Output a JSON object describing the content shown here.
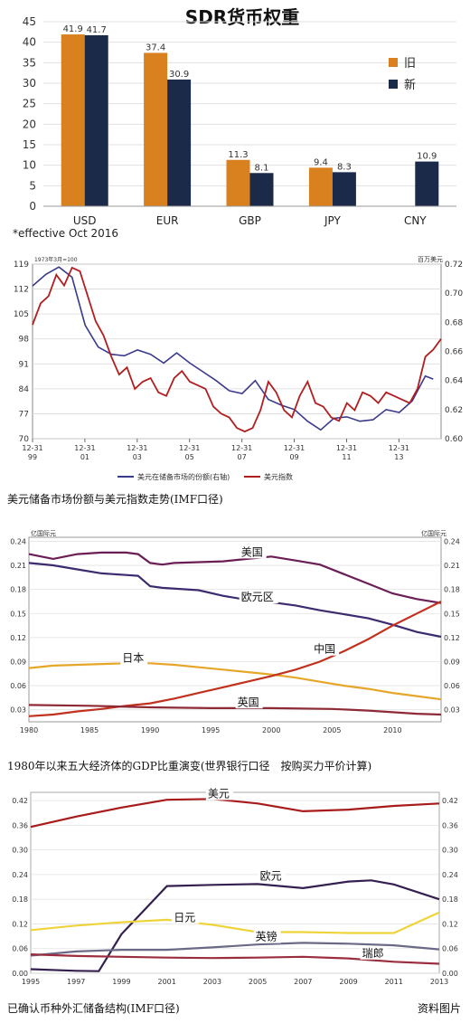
{
  "chart_data": [
    {
      "type": "bar",
      "title": "SDR货币权重",
      "categories": [
        "USD",
        "EUR",
        "GBP",
        "JPY",
        "CNY"
      ],
      "series": [
        {
          "name": "旧",
          "color": "#d9801f",
          "values": [
            41.9,
            37.4,
            11.3,
            9.4,
            null
          ]
        },
        {
          "name": "新",
          "color": "#1c2a4a",
          "values": [
            41.7,
            30.9,
            8.1,
            8.3,
            10.9
          ]
        }
      ],
      "value_labels": {
        "旧": [
          "41.9",
          "37.4",
          "11.3",
          "9.4",
          ""
        ],
        "新": [
          "41.7",
          "30.9",
          "8.1",
          "8.3",
          "10.9"
        ]
      },
      "yticks": [
        0,
        5,
        10,
        15,
        20,
        25,
        30,
        35,
        40,
        45
      ],
      "ylim": [
        0,
        45
      ],
      "note": "*effective Oct 2016",
      "legend": "right"
    },
    {
      "type": "line",
      "caption": "美元储备市场份额与美元指数走势(IMF口径)",
      "left_axis_label": "1973年3月=100",
      "right_axis_label": "百万美元",
      "left_ticks": [
        "119",
        "112",
        "105",
        "98",
        "91",
        "84",
        "77",
        "70"
      ],
      "left_tick_values": [
        119,
        112,
        105,
        98,
        91,
        84,
        77,
        70
      ],
      "right_ticks": [
        "0.72",
        "0.70",
        "0.68",
        "0.66",
        "0.64",
        "0.62",
        "0.60"
      ],
      "right_tick_values": [
        0.72,
        0.7,
        0.68,
        0.66,
        0.64,
        0.62,
        0.6
      ],
      "x_ticks": [
        {
          "top": "12-31",
          "bottom": "99",
          "x": 1999.99
        },
        {
          "top": "12-31",
          "bottom": "01",
          "x": 2001.99
        },
        {
          "top": "12-31",
          "bottom": "03",
          "x": 2003.99
        },
        {
          "top": "12-31",
          "bottom": "05",
          "x": 2005.99
        },
        {
          "top": "12-31",
          "bottom": "07",
          "x": 2007.99
        },
        {
          "top": "12-31",
          "bottom": "09",
          "x": 2009.99
        },
        {
          "top": "12-31",
          "bottom": "11",
          "x": 2011.99
        },
        {
          "top": "12-31",
          "bottom": "13",
          "x": 2013.99
        }
      ],
      "xlim": [
        1999.99,
        2015.6
      ],
      "series": [
        {
          "name": "美元在储备市场的份额(右轴)",
          "color": "#3a3a8c",
          "axis": "right",
          "x": [
            1999.99,
            2000.5,
            2001.0,
            2001.5,
            2002.0,
            2002.5,
            2003.0,
            2003.5,
            2004.0,
            2004.5,
            2005.0,
            2005.5,
            2006.0,
            2006.5,
            2007.0,
            2007.5,
            2008.0,
            2008.5,
            2009.0,
            2009.5,
            2010.0,
            2010.5,
            2011.0,
            2011.5,
            2012.0,
            2012.5,
            2013.0,
            2013.5,
            2014.0,
            2014.5,
            2015.0,
            2015.3
          ],
          "y": [
            0.705,
            0.713,
            0.718,
            0.711,
            0.678,
            0.663,
            0.658,
            0.657,
            0.661,
            0.658,
            0.652,
            0.659,
            0.652,
            0.646,
            0.64,
            0.633,
            0.631,
            0.64,
            0.627,
            0.623,
            0.62,
            0.612,
            0.606,
            0.614,
            0.615,
            0.612,
            0.613,
            0.62,
            0.618,
            0.626,
            0.643,
            0.641
          ]
        },
        {
          "name": "美元指数",
          "color": "#b01e20",
          "axis": "left",
          "x": [
            1999.99,
            2000.3,
            2000.6,
            2000.9,
            2001.2,
            2001.5,
            2001.8,
            2002.1,
            2002.4,
            2002.7,
            2003.0,
            2003.3,
            2003.6,
            2003.9,
            2004.2,
            2004.5,
            2004.8,
            2005.1,
            2005.4,
            2005.7,
            2006.0,
            2006.3,
            2006.6,
            2006.9,
            2007.2,
            2007.5,
            2007.8,
            2008.1,
            2008.4,
            2008.7,
            2009.0,
            2009.3,
            2009.6,
            2009.9,
            2010.2,
            2010.5,
            2010.8,
            2011.1,
            2011.4,
            2011.7,
            2012.0,
            2012.3,
            2012.6,
            2012.9,
            2013.2,
            2013.5,
            2013.8,
            2014.1,
            2014.4,
            2014.7,
            2015.0,
            2015.3,
            2015.6
          ],
          "y": [
            102,
            108,
            110,
            116,
            113,
            118,
            117,
            110,
            103,
            99,
            93,
            88,
            90,
            84,
            86,
            87,
            83,
            82,
            87,
            89,
            86,
            85,
            84,
            79,
            77,
            76,
            73,
            72,
            73,
            78,
            86,
            83,
            78,
            76,
            82,
            86,
            80,
            79,
            76,
            75,
            80,
            78,
            83,
            82,
            80,
            83,
            82,
            81,
            80,
            84,
            93,
            95,
            98
          ]
        }
      ]
    },
    {
      "type": "line",
      "caption": "1980年以来五大经济体的GDP比重演变(世界银行口径　按购买力平价计算)",
      "left_axis_label": "亿国际元",
      "right_axis_label": "亿国际元",
      "y_ticks": [
        "0.24",
        "0.21",
        "0.18",
        "0.15",
        "0.12",
        "0.09",
        "0.06",
        "0.03"
      ],
      "y_tick_values": [
        0.24,
        0.21,
        0.18,
        0.15,
        0.12,
        0.09,
        0.06,
        0.03
      ],
      "x_ticks": [
        "1980",
        "1985",
        "1990",
        "1995",
        "2000",
        "2005",
        "2010"
      ],
      "x_tick_values": [
        1980,
        1985,
        1990,
        1995,
        2000,
        2005,
        2010
      ],
      "xlim": [
        1980,
        2014
      ],
      "ylim": [
        0.015,
        0.245
      ],
      "series": [
        {
          "name": "美国",
          "color": "#6b1e55",
          "x": [
            1980,
            1982,
            1984,
            1986,
            1988,
            1989,
            1990,
            1991,
            1992,
            1994,
            1996,
            1998,
            2000,
            2002,
            2004,
            2006,
            2008,
            2010,
            2012,
            2014
          ],
          "y": [
            0.224,
            0.218,
            0.224,
            0.226,
            0.226,
            0.224,
            0.213,
            0.211,
            0.213,
            0.214,
            0.215,
            0.218,
            0.221,
            0.216,
            0.211,
            0.199,
            0.187,
            0.175,
            0.168,
            0.163
          ]
        },
        {
          "name": "欧元区",
          "color": "#3c2b6e",
          "x": [
            1980,
            1982,
            1984,
            1986,
            1988,
            1989,
            1990,
            1991,
            1994,
            1996,
            1998,
            2000,
            2002,
            2004,
            2006,
            2008,
            2010,
            2012,
            2014
          ],
          "y": [
            0.213,
            0.21,
            0.205,
            0.2,
            0.198,
            0.197,
            0.184,
            0.182,
            0.179,
            0.172,
            0.167,
            0.164,
            0.16,
            0.154,
            0.149,
            0.144,
            0.136,
            0.127,
            0.121
          ]
        },
        {
          "name": "日本",
          "color": "#e6a62a",
          "x": [
            1980,
            1982,
            1984,
            1986,
            1988,
            1990,
            1992,
            1994,
            1996,
            1998,
            2000,
            2002,
            2004,
            2006,
            2008,
            2010,
            2012,
            2014
          ],
          "y": [
            0.082,
            0.085,
            0.086,
            0.087,
            0.088,
            0.088,
            0.086,
            0.083,
            0.08,
            0.077,
            0.074,
            0.07,
            0.065,
            0.06,
            0.056,
            0.051,
            0.047,
            0.043
          ]
        },
        {
          "name": "中国",
          "color": "#c0321e",
          "x": [
            1980,
            1982,
            1984,
            1986,
            1988,
            1990,
            1992,
            1994,
            1996,
            1998,
            2000,
            2002,
            2004,
            2006,
            2008,
            2010,
            2012,
            2014
          ],
          "y": [
            0.022,
            0.024,
            0.028,
            0.031,
            0.035,
            0.038,
            0.044,
            0.051,
            0.058,
            0.065,
            0.072,
            0.08,
            0.09,
            0.103,
            0.118,
            0.135,
            0.15,
            0.165
          ]
        },
        {
          "name": "英国",
          "color": "#8e2a35",
          "x": [
            1980,
            1985,
            1990,
            1995,
            2000,
            2005,
            2008,
            2010,
            2012,
            2014
          ],
          "y": [
            0.036,
            0.035,
            0.033,
            0.032,
            0.032,
            0.031,
            0.029,
            0.027,
            0.025,
            0.024
          ]
        }
      ]
    },
    {
      "type": "line",
      "caption": "已确认币种外汇储备结构(IMF口径)",
      "source_note": "资料图片",
      "y_ticks": [
        "0.42",
        "0.36",
        "0.30",
        "0.24",
        "0.18",
        "0.12",
        "0.06",
        "0.00"
      ],
      "y_tick_values": [
        0.42,
        0.36,
        0.3,
        0.24,
        0.18,
        0.12,
        0.06,
        0.0
      ],
      "x_ticks": [
        "1995",
        "1997",
        "1999",
        "2001",
        "2003",
        "2005",
        "2007",
        "2009",
        "2011",
        "2013"
      ],
      "x_tick_values": [
        1995,
        1997,
        1999,
        2001,
        2003,
        2005,
        2007,
        2009,
        2011,
        2013
      ],
      "xlim": [
        1995,
        2013
      ],
      "ylim": [
        0,
        0.44
      ],
      "series": [
        {
          "name": "美元",
          "color": "#a81b1b",
          "x": [
            1995,
            1997,
            1999,
            2001,
            2003,
            2005,
            2007,
            2009,
            2011,
            2013
          ],
          "y": [
            0.356,
            0.381,
            0.403,
            0.422,
            0.424,
            0.413,
            0.394,
            0.398,
            0.407,
            0.413
          ]
        },
        {
          "name": "欧元",
          "color": "#34204f",
          "x": [
            1995,
            1997,
            1998,
            1999,
            2001,
            2003,
            2005,
            2007,
            2009,
            2010,
            2011,
            2013
          ],
          "y": [
            0.01,
            0.006,
            0.005,
            0.095,
            0.212,
            0.215,
            0.217,
            0.207,
            0.223,
            0.226,
            0.216,
            0.18
          ]
        },
        {
          "name": "日元",
          "color": "#efd33b",
          "x": [
            1995,
            1997,
            1999,
            2001,
            2003,
            2005,
            2007,
            2009,
            2011,
            2013
          ],
          "y": [
            0.105,
            0.116,
            0.124,
            0.13,
            0.118,
            0.1,
            0.1,
            0.098,
            0.098,
            0.148
          ]
        },
        {
          "name": "英镑",
          "color": "#6a6a86",
          "x": [
            1995,
            1997,
            1999,
            2001,
            2003,
            2005,
            2007,
            2009,
            2011,
            2013
          ],
          "y": [
            0.043,
            0.053,
            0.057,
            0.057,
            0.063,
            0.07,
            0.074,
            0.072,
            0.068,
            0.058
          ]
        },
        {
          "name": "瑞郎",
          "color": "#9a2d3e",
          "x": [
            1995,
            1997,
            1999,
            2001,
            2003,
            2005,
            2007,
            2009,
            2011,
            2013
          ],
          "y": [
            0.046,
            0.042,
            0.04,
            0.038,
            0.037,
            0.038,
            0.04,
            0.036,
            0.028,
            0.023
          ]
        }
      ]
    }
  ]
}
